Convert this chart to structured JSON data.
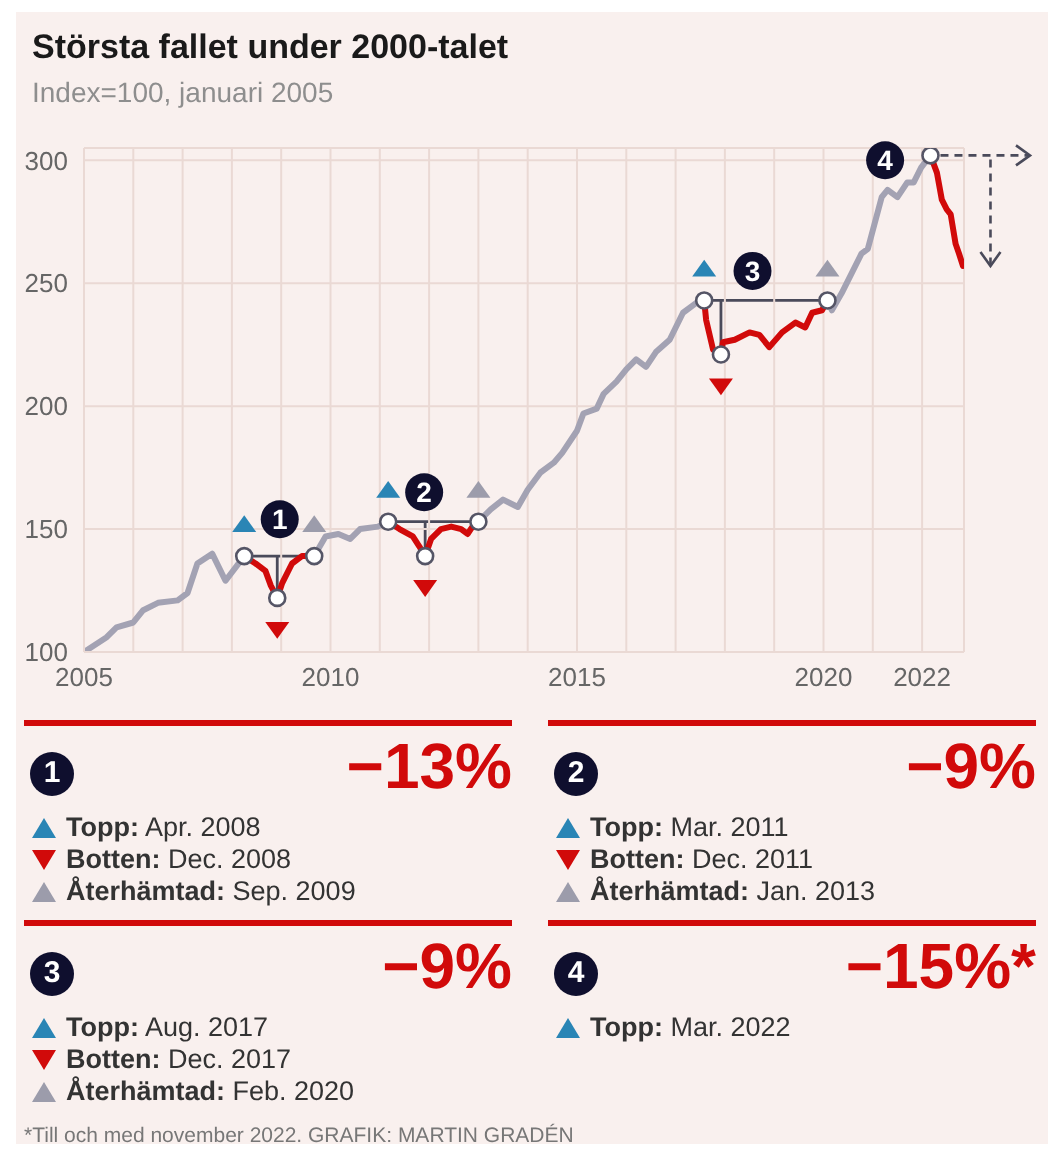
{
  "chart_data": [
    {
      "type": "line",
      "title": "Största fallet under 2000-talet",
      "subtitle": "Index=100, januari 2005",
      "xlim": [
        2005,
        2022.85
      ],
      "xticks": [
        2005,
        {
          "value": 2006,
          "label": null
        },
        {
          "value": 2007,
          "label": null
        },
        {
          "value": 2008,
          "label": null
        },
        {
          "value": 2009,
          "label": null
        },
        2010,
        {
          "value": 2011,
          "label": null
        },
        {
          "value": 2012,
          "label": null
        },
        {
          "value": 2013,
          "label": null
        },
        {
          "value": 2014,
          "label": null
        },
        2015,
        {
          "value": 2016,
          "label": null
        },
        {
          "value": 2017,
          "label": null
        },
        {
          "value": 2018,
          "label": null
        },
        {
          "value": 2019,
          "label": null
        },
        2020,
        {
          "value": 2021,
          "label": null
        },
        2022
      ],
      "ylim": [
        100,
        305
      ],
      "yticks": [
        100,
        150,
        200,
        250,
        300
      ],
      "grid": true,
      "series": [
        {
          "color": "#a3a2b3",
          "x": [
            2005,
            2005.46,
            2005.66,
            2006.0,
            2006.2,
            2006.5,
            2006.9,
            2007.1,
            2007.3,
            2007.6,
            2007.87,
            2008.25,
            2009,
            2009.67,
            2009.9,
            2010.16,
            2010.4,
            2010.6,
            2010.96,
            2011.17,
            2012,
            2013.0,
            2013.25,
            2013.5,
            2013.8,
            2014.0,
            2014.26,
            2014.53,
            2014.7,
            2015.0,
            2015.13,
            2015.4,
            2015.54,
            2015.8,
            2016.0,
            2016.2,
            2016.4,
            2016.6,
            2016.88,
            2017.15,
            2017.42,
            2017.58,
            2019,
            2020.08,
            2020.17,
            2020.37,
            2020.77,
            2020.9,
            2021.18,
            2021.3,
            2021.5,
            2021.7,
            2021.83,
            2021.98,
            2022.17
          ],
          "values": [
            100,
            106,
            110,
            112,
            117,
            120,
            121,
            124,
            136,
            140,
            129,
            139,
            null,
            139,
            147,
            148,
            146,
            150,
            151,
            153,
            null,
            153,
            158,
            162,
            159,
            166,
            173,
            177,
            181,
            190,
            197,
            199,
            205,
            210,
            215,
            219,
            216,
            222,
            227,
            238,
            242,
            243,
            null,
            243,
            239,
            246,
            262,
            264,
            285,
            288,
            285,
            291,
            291,
            297,
            302
          ]
        },
        {
          "color": "#d10a0a",
          "x": [
            2008.25,
            2008.48,
            2008.68,
            2008.79,
            2008.92,
            2009.02,
            2009.22,
            2009.42,
            2009.67,
            2010,
            2011.17,
            2011.4,
            2011.67,
            2011.8,
            2011.92,
            2012.04,
            2012.24,
            2012.45,
            2012.65,
            2012.78,
            2012.88,
            2013.0,
            2015,
            2017.58,
            2017.62,
            2017.76,
            2017.92,
            2017.96,
            2018.2,
            2018.5,
            2018.7,
            2018.9,
            2019.16,
            2019.43,
            2019.63,
            2019.77,
            2019.97,
            2020.08,
            2021,
            2022.17,
            2022.3,
            2022.4,
            2022.5,
            2022.58,
            2022.68,
            2022.75,
            2022.83
          ],
          "values": [
            139,
            136,
            133,
            127,
            122,
            128,
            136,
            139,
            139,
            null,
            153,
            150,
            147,
            143,
            139,
            146,
            150,
            151,
            150,
            148,
            151,
            153,
            null,
            243,
            235,
            223,
            221,
            226,
            227,
            230,
            229,
            224,
            230,
            234,
            232,
            238,
            239,
            243,
            null,
            302,
            295,
            284,
            280,
            278,
            266,
            262,
            257
          ]
        },
        {
          "type": "scatter",
          "marker": "circle",
          "color": "#ffffff",
          "x": [
            2008.25,
            2011.17,
            2017.58,
            2022.17
          ],
          "values": [
            139,
            153,
            243,
            302
          ]
        },
        {
          "type": "scatter",
          "marker": "circle",
          "color": "#ffffff",
          "x": [
            2008.92,
            2011.92,
            2017.92
          ],
          "values": [
            122,
            139,
            221
          ]
        },
        {
          "type": "scatter",
          "marker": "circle",
          "color": "#ffffff",
          "x": [
            2009.67,
            2013.0,
            2020.08
          ],
          "values": [
            139,
            153,
            243
          ]
        }
      ],
      "annotations": [
        {
          "text": "1",
          "x": 2008.97,
          "y": 154
        },
        {
          "text": "2",
          "x": 2011.9,
          "y": 165
        },
        {
          "text": "3",
          "x": 2018.56,
          "y": 255
        },
        {
          "text": "4",
          "x": 2021.25,
          "y": 300
        }
      ]
    },
    {
      "type": "other",
      "categories": [
        "1",
        "2",
        "3",
        "4"
      ],
      "annotations": [
        {
          "text": "−13%",
          "x": "1"
        },
        {
          "text": "Topp: Apr. 2008",
          "x": "1"
        },
        {
          "text": "Botten: Dec. 2008",
          "x": "1"
        },
        {
          "text": "Återhämtad: Sep. 2009",
          "x": "1"
        },
        {
          "text": "−9%",
          "x": "2"
        },
        {
          "text": "Topp: Mar. 2011",
          "x": "2"
        },
        {
          "text": "Botten: Dec. 2011",
          "x": "2"
        },
        {
          "text": "Återhämtad: Jan. 2013",
          "x": "2"
        },
        {
          "text": "−9%",
          "x": "3"
        },
        {
          "text": "Topp: Aug. 2017",
          "x": "3"
        },
        {
          "text": "Botten: Dec. 2017",
          "x": "3"
        },
        {
          "text": "Återhämtad: Feb. 2020",
          "x": "3"
        },
        {
          "text": "−15%*",
          "x": "4"
        },
        {
          "text": "Topp: Mar. 2022",
          "x": "4"
        },
        "*Till och med november 2022. GRAFIK: MARTIN GRADÉN"
      ]
    }
  ]
}
